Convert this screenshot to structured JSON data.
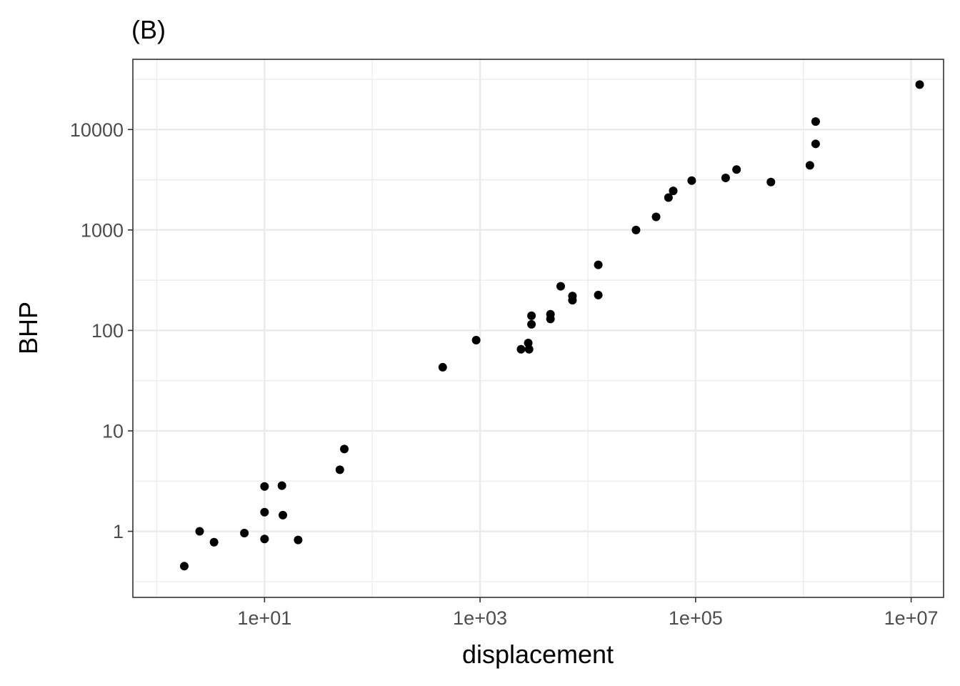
{
  "chart_data": {
    "type": "scatter",
    "title": "(B)",
    "xlabel": "displacement",
    "ylabel": "BHP",
    "x_scale": "log10",
    "y_scale": "log10",
    "xlim": [
      0.6,
      20000000
    ],
    "ylim": [
      0.22,
      50000
    ],
    "x_ticks": [
      {
        "value": 10,
        "label": "1e+01"
      },
      {
        "value": 1000,
        "label": "1e+03"
      },
      {
        "value": 100000,
        "label": "1e+05"
      },
      {
        "value": 10000000,
        "label": "1e+07"
      }
    ],
    "y_ticks": [
      {
        "value": 1,
        "label": "1"
      },
      {
        "value": 10,
        "label": "10"
      },
      {
        "value": 100,
        "label": "100"
      },
      {
        "value": 1000,
        "label": "1000"
      },
      {
        "value": 10000,
        "label": "10000"
      }
    ],
    "grid": true,
    "legend": "none",
    "point_color": "#000000",
    "points": [
      {
        "x": 1.8,
        "y": 0.45
      },
      {
        "x": 2.5,
        "y": 1.0
      },
      {
        "x": 3.4,
        "y": 0.78
      },
      {
        "x": 6.5,
        "y": 0.96
      },
      {
        "x": 10,
        "y": 2.8
      },
      {
        "x": 10,
        "y": 1.55
      },
      {
        "x": 10,
        "y": 0.84
      },
      {
        "x": 14.5,
        "y": 2.85
      },
      {
        "x": 14.8,
        "y": 1.45
      },
      {
        "x": 20.5,
        "y": 0.82
      },
      {
        "x": 50,
        "y": 4.1
      },
      {
        "x": 55,
        "y": 6.6
      },
      {
        "x": 450,
        "y": 43
      },
      {
        "x": 920,
        "y": 80
      },
      {
        "x": 2400,
        "y": 65
      },
      {
        "x": 2800,
        "y": 75
      },
      {
        "x": 2850,
        "y": 65
      },
      {
        "x": 3000,
        "y": 115
      },
      {
        "x": 3000,
        "y": 140
      },
      {
        "x": 4500,
        "y": 130
      },
      {
        "x": 4500,
        "y": 145
      },
      {
        "x": 5600,
        "y": 275
      },
      {
        "x": 7200,
        "y": 220
      },
      {
        "x": 7200,
        "y": 200
      },
      {
        "x": 12500,
        "y": 450
      },
      {
        "x": 12500,
        "y": 225
      },
      {
        "x": 28000,
        "y": 1000
      },
      {
        "x": 43000,
        "y": 1350
      },
      {
        "x": 56000,
        "y": 2100
      },
      {
        "x": 62000,
        "y": 2450
      },
      {
        "x": 92000,
        "y": 3100
      },
      {
        "x": 190000,
        "y": 3300
      },
      {
        "x": 240000,
        "y": 4000
      },
      {
        "x": 500000,
        "y": 3000
      },
      {
        "x": 1150000,
        "y": 4400
      },
      {
        "x": 1300000,
        "y": 12000
      },
      {
        "x": 1300000,
        "y": 7200
      },
      {
        "x": 12000000,
        "y": 28000
      }
    ]
  }
}
